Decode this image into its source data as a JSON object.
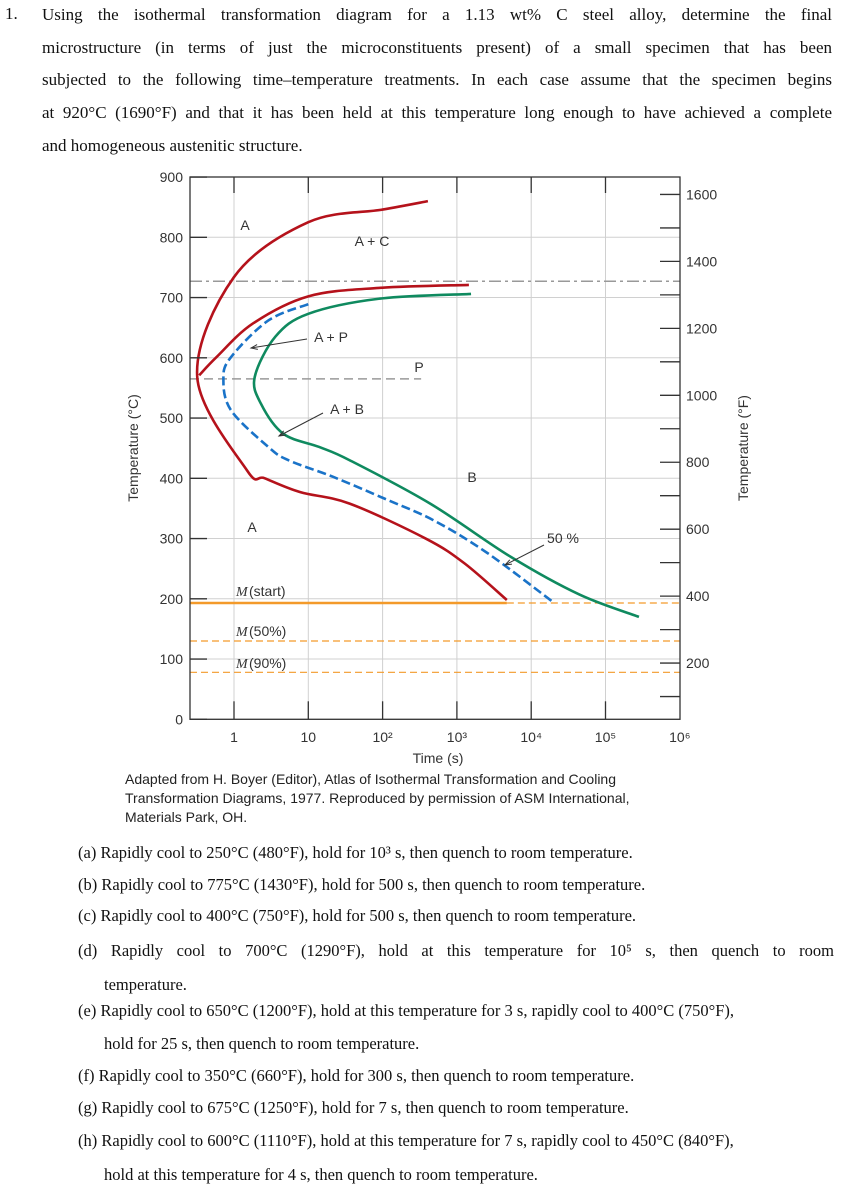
{
  "problem": {
    "number": "1.",
    "lines": [
      "Using the isothermal transformation diagram for a 1.13 wt% C steel alloy, determine the final",
      "microstructure (in terms of just the microconstituents present) of a small specimen that has been",
      "subjected to the following time–temperature treatments. In each case assume that the specimen begins",
      "at 920°C (1690°F) and that it has been held at this temperature long enough to have achieved a complete",
      "and homogeneous austenitic structure."
    ]
  },
  "caption": [
    "Adapted from H. Boyer (Editor), Atlas of Isothermal Transformation and Cooling",
    "Transformation Diagrams, 1977. Reproduced by permission of ASM International,",
    "Materials Park, OH."
  ],
  "items": [
    {
      "line1": "(a) Rapidly cool to 250°C (480°F), hold for 10³ s, then quench to room temperature."
    },
    {
      "line1": "(b) Rapidly cool to 775°C (1430°F), hold for 500 s, then quench to room temperature."
    },
    {
      "line1": "(c) Rapidly cool to 400°C (750°F), hold for 500 s, then quench to room temperature."
    },
    {
      "line1": "(d) Rapidly cool to 700°C (1290°F), hold at this temperature for 10⁵ s, then quench to room",
      "line2": "temperature."
    },
    {
      "line1": "(e) Rapidly cool to 650°C (1200°F), hold at this temperature for 3 s, rapidly cool to 400°C (750°F),",
      "line2": "hold for 25 s, then quench to room temperature."
    },
    {
      "line1": "(f) Rapidly cool to 350°C (660°F), hold for 300 s, then quench to room temperature."
    },
    {
      "line1": "(g) Rapidly cool to 675°C (1250°F), hold for 7 s, then quench to room temperature."
    },
    {
      "line1": "(h) Rapidly cool to 600°C (1110°F), hold at this temperature for 7 s, rapidly cool to 450°C (840°F),",
      "line2": "hold at this temperature for 4 s, then quench to room temperature."
    }
  ],
  "chart_data": {
    "type": "line",
    "xlabel": "Time (s)",
    "ylabel": "Temperature (°C)",
    "ylabel_right": "Temperature (°F)",
    "x_scale": "log",
    "xlim": [
      0.26,
      1000000
    ],
    "ylim": [
      0,
      900
    ],
    "grid": true,
    "x_ticks": [
      {
        "value": 1,
        "label": "1"
      },
      {
        "value": 10,
        "label": "10"
      },
      {
        "value": 100,
        "label": "10²"
      },
      {
        "value": 1000,
        "label": "10³"
      },
      {
        "value": 10000,
        "label": "10⁴"
      },
      {
        "value": 100000,
        "label": "10⁵"
      },
      {
        "value": 1000000,
        "label": "10⁶"
      }
    ],
    "y_ticks": [
      "0",
      "100",
      "200",
      "300",
      "400",
      "500",
      "600",
      "700",
      "800",
      "900"
    ],
    "y_right_ticks": [
      "200",
      "400",
      "600",
      "800",
      "1000",
      "1200",
      "1400",
      "1600"
    ],
    "colors": {
      "start_finish": "#b5121b",
      "fifty_percent": "#1a73c8",
      "finish": "#0f8a5f",
      "martensite": "#f39a2a",
      "reference": "#999999",
      "grid": "#d0d0d0"
    },
    "curves": [
      {
        "id": "start",
        "color_key": "start_finish",
        "style": "solid",
        "points": [
          [
            407,
            860
          ],
          [
            100,
            846
          ],
          [
            10,
            825
          ],
          [
            1,
            734
          ],
          [
            0.32,
            568
          ],
          [
            1.5,
            413
          ],
          [
            2.6,
            400
          ],
          [
            7.8,
            377
          ],
          [
            36,
            358
          ],
          [
            380,
            300
          ],
          [
            1260,
            259
          ],
          [
            4700,
            198
          ]
        ]
      },
      {
        "id": "pearlite-finish",
        "color_key": "start_finish",
        "style": "solid",
        "points": [
          [
            0.34,
            571
          ],
          [
            0.58,
            601
          ],
          [
            1.8,
            657
          ],
          [
            10,
            702
          ],
          [
            89,
            716
          ],
          [
            1450,
            721
          ]
        ]
      },
      {
        "id": "fifty-percent",
        "color_key": "fifty_percent",
        "style": "dashed",
        "points": [
          [
            10,
            689
          ],
          [
            2.9,
            662
          ],
          [
            0.91,
            601
          ],
          [
            0.72,
            565
          ],
          [
            0.91,
            513
          ],
          [
            2.9,
            452
          ],
          [
            5.4,
            430
          ],
          [
            22,
            402
          ],
          [
            117,
            364
          ],
          [
            490,
            330
          ],
          [
            2570,
            276
          ],
          [
            19500,
            195
          ]
        ]
      },
      {
        "id": "finish",
        "color_key": "finish",
        "style": "solid",
        "points": [
          [
            1550,
            706
          ],
          [
            89,
            698
          ],
          [
            10,
            673
          ],
          [
            3.6,
            635
          ],
          [
            1.9,
            568
          ],
          [
            2.3,
            524
          ],
          [
            4.6,
            474
          ],
          [
            14,
            452
          ],
          [
            36,
            430
          ],
          [
            437,
            358
          ],
          [
            5250,
            270
          ],
          [
            44700,
            207
          ],
          [
            282000,
            170
          ]
        ]
      }
    ],
    "eutectoid_temp": 727,
    "nose_isotherm": {
      "temp": 565,
      "to_time": 330
    },
    "martensite": {
      "start": 193,
      "start_solid_to_time": 4700,
      "fifty": 130,
      "ninety": 78
    },
    "labels": {
      "a_top": "A",
      "a_plus_c": "A + C",
      "a_plus_p": "A + P",
      "p": "P",
      "a_plus_b": "A + B",
      "b": "B",
      "a_bottom": "A",
      "fifty": "50 %",
      "m_start": "(start)",
      "m_50": "(50%)",
      "m_90": "(90%)",
      "m": "M"
    }
  }
}
